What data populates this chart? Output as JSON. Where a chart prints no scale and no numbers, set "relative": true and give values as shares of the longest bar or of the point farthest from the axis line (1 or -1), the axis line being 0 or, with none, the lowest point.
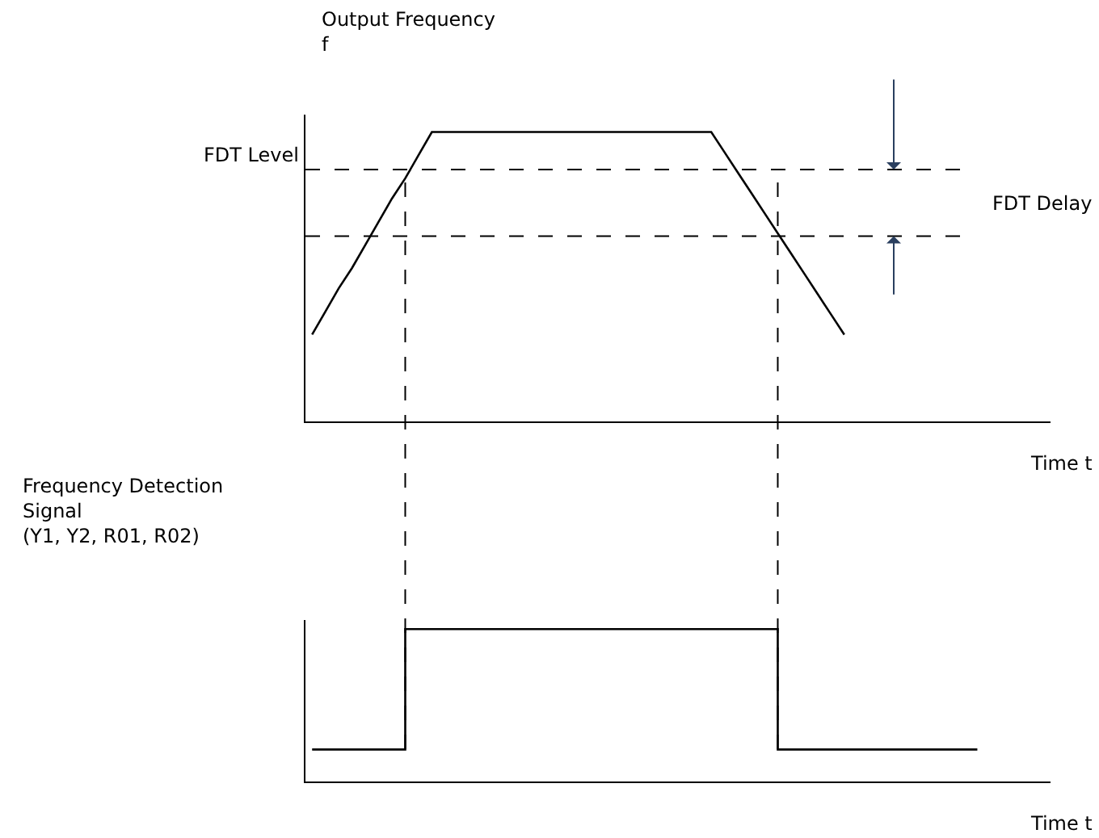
{
  "chart_data": [
    {
      "type": "line",
      "relative": true,
      "ylabel": "Output Frequency\nf",
      "xlabel": "Time t",
      "color": "#000000",
      "categories": [
        null,
        null,
        null,
        null,
        null,
        null,
        null,
        null,
        null,
        null,
        null,
        null,
        null,
        null,
        null,
        null,
        null,
        null,
        null,
        null,
        null,
        null,
        null,
        null,
        null,
        null,
        null,
        null,
        null,
        null,
        null,
        null,
        null,
        null,
        null,
        null,
        null,
        null,
        null,
        null,
        null,
        null,
        null,
        null,
        null,
        null,
        null,
        null,
        null,
        null,
        null,
        null,
        null,
        null,
        null,
        null
      ],
      "values": [
        0.3,
        0.38,
        0.46,
        0.53,
        0.61,
        0.69,
        0.77,
        0.84,
        0.92,
        1,
        1,
        1,
        1,
        1,
        1,
        1,
        1,
        1,
        1,
        1,
        1,
        1,
        1,
        1,
        1,
        1,
        1,
        1,
        1,
        1,
        1,
        0.93,
        0.86,
        0.79,
        0.72,
        0.65,
        0.58,
        0.51,
        0.44,
        0.37,
        0.3,
        null,
        null,
        null,
        null,
        null,
        null,
        null,
        null,
        null,
        null,
        null,
        null,
        null,
        null,
        null
      ],
      "ref_lines": [
        {
          "axis": "y",
          "value": 0.87,
          "label": "FDT Level",
          "line_style": "dashed"
        },
        {
          "axis": "y",
          "value": 0.64,
          "label": null,
          "line_style": "dashed"
        }
      ],
      "annotations": [
        "FDT Delay"
      ]
    },
    {
      "type": "step",
      "relative": true,
      "ylabel": "Frequency Detection\nSignal\n(Y1, Y2, R01, R02)",
      "xlabel": "Time t",
      "color": "#000000",
      "categories": [
        null,
        null,
        null,
        null,
        null,
        null,
        null,
        null,
        null,
        null,
        null,
        null,
        null,
        null,
        null,
        null,
        null,
        null,
        null,
        null,
        null,
        null,
        null,
        null,
        null,
        null,
        null,
        null,
        null,
        null,
        null,
        null,
        null,
        null,
        null,
        null,
        null,
        null,
        null,
        null,
        null,
        null,
        null,
        null,
        null,
        null,
        null,
        null,
        null,
        null,
        null,
        null,
        null,
        null,
        null,
        null
      ],
      "values": [
        0.21,
        0.21,
        0.21,
        0.21,
        0.21,
        0.21,
        0.21,
        1,
        1,
        1,
        1,
        1,
        1,
        1,
        1,
        1,
        1,
        1,
        1,
        1,
        1,
        1,
        1,
        1,
        1,
        1,
        1,
        1,
        1,
        1,
        1,
        1,
        1,
        1,
        1,
        0.21,
        0.21,
        0.21,
        0.21,
        0.21,
        0.21,
        0.21,
        0.21,
        0.21,
        0.21,
        0.21,
        0.21,
        0.21,
        0.21,
        0.21,
        0.21,
        null,
        null,
        null,
        null,
        null
      ]
    }
  ]
}
